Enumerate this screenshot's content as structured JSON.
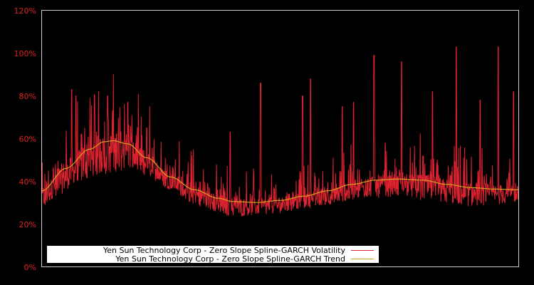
{
  "chart_data": {
    "type": "line",
    "title": "",
    "xlabel": "",
    "ylabel": "",
    "ylim": [
      0,
      120
    ],
    "y_ticks": [
      "0%",
      "20%",
      "40%",
      "60%",
      "80%",
      "100%",
      "120%"
    ],
    "y_tick_values": [
      0,
      20,
      40,
      60,
      80,
      100,
      120
    ],
    "grid": false,
    "legend_position": "lower-left inside",
    "background": "#000000",
    "frame_color": "#cccccc",
    "tick_label_color": "#dd2222",
    "x_domain": [
      0,
      1
    ],
    "series": [
      {
        "name": "Yen Sun Technology Corp - Zero Slope Spline-GARCH Volatility",
        "color": "#dd2230",
        "style": "spiky-daily",
        "lower_envelope": {
          "x": [
            0,
            0.03,
            0.08,
            0.13,
            0.17,
            0.22,
            0.27,
            0.32,
            0.37,
            0.4,
            0.45,
            0.5,
            0.55,
            0.6,
            0.65,
            0.7,
            0.75,
            0.8,
            0.85,
            0.9,
            0.95,
            1.0
          ],
          "y": [
            27,
            33,
            40,
            43,
            45,
            42,
            36,
            29,
            25,
            23,
            24,
            25,
            27,
            29,
            31,
            32,
            33,
            31,
            29,
            28,
            29,
            30
          ]
        },
        "peaks": [
          {
            "x": 0.062,
            "y": 83
          },
          {
            "x": 0.071,
            "y": 80
          },
          {
            "x": 0.138,
            "y": 80
          },
          {
            "x": 0.18,
            "y": 77
          },
          {
            "x": 0.22,
            "y": 65
          },
          {
            "x": 0.395,
            "y": 63
          },
          {
            "x": 0.459,
            "y": 86
          },
          {
            "x": 0.547,
            "y": 80
          },
          {
            "x": 0.564,
            "y": 88
          },
          {
            "x": 0.63,
            "y": 75
          },
          {
            "x": 0.654,
            "y": 77
          },
          {
            "x": 0.697,
            "y": 99
          },
          {
            "x": 0.755,
            "y": 96
          },
          {
            "x": 0.82,
            "y": 82
          },
          {
            "x": 0.87,
            "y": 103
          },
          {
            "x": 0.92,
            "y": 78
          },
          {
            "x": 0.958,
            "y": 103
          },
          {
            "x": 0.99,
            "y": 82
          }
        ]
      },
      {
        "name": "Yen Sun Technology Corp - Zero Slope Spline-GARCH Trend",
        "color": "#d4a020",
        "style": "smooth",
        "x": [
          0,
          0.05,
          0.1,
          0.13,
          0.15,
          0.18,
          0.22,
          0.27,
          0.32,
          0.37,
          0.4,
          0.45,
          0.5,
          0.55,
          0.6,
          0.65,
          0.7,
          0.75,
          0.8,
          0.85,
          0.9,
          0.95,
          1.0
        ],
        "y": [
          35.5,
          46,
          55,
          58.5,
          59,
          57.5,
          51,
          42,
          36,
          32,
          30.5,
          30,
          31,
          33,
          35.5,
          38.5,
          40.5,
          41,
          40.5,
          38.5,
          37,
          36.3,
          36
        ]
      }
    ]
  },
  "legend": {
    "items": [
      {
        "label": "Yen Sun Technology Corp - Zero Slope Spline-GARCH Volatility",
        "color": "#dd2230"
      },
      {
        "label": "Yen Sun Technology Corp - Zero Slope Spline-GARCH Trend",
        "color": "#d4a020"
      }
    ]
  }
}
